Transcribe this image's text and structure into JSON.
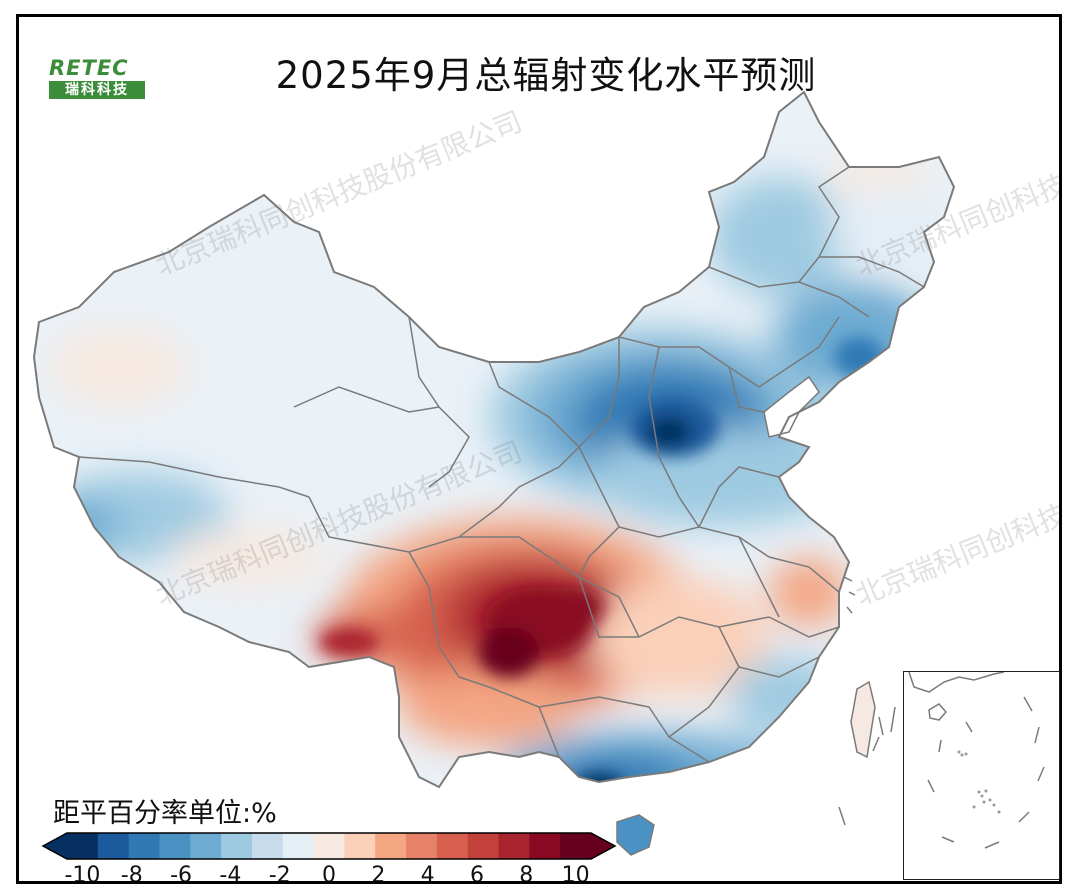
{
  "title": "2025年9月总辐射变化水平预测",
  "logo": {
    "top_text": "RETEC",
    "bottom_text": "瑞科科技"
  },
  "watermark": "北京瑞科同创科技股份有限公司",
  "legend": {
    "unit_label": "距平百分率单位:%",
    "ticks": [
      "-10",
      "-8",
      "-6",
      "-4",
      "-2",
      "0",
      "2",
      "4",
      "6",
      "8",
      "10"
    ],
    "colors": [
      "#053061",
      "#1b5a9c",
      "#2f79b5",
      "#4a92c4",
      "#6eabd2",
      "#9ecae1",
      "#c6dcec",
      "#e4eef5",
      "#f6e9e1",
      "#fbd0b9",
      "#f4a582",
      "#e58267",
      "#d6604d",
      "#c2413a",
      "#a9242e",
      "#8b0a23",
      "#67001f"
    ],
    "range": [
      -10,
      10
    ]
  },
  "colors": {
    "neutral": "#eaf1f7",
    "border": "#7a7a7a"
  },
  "icons": {
    "inset": "south-china-sea-inset",
    "logo": "retec-logo"
  }
}
